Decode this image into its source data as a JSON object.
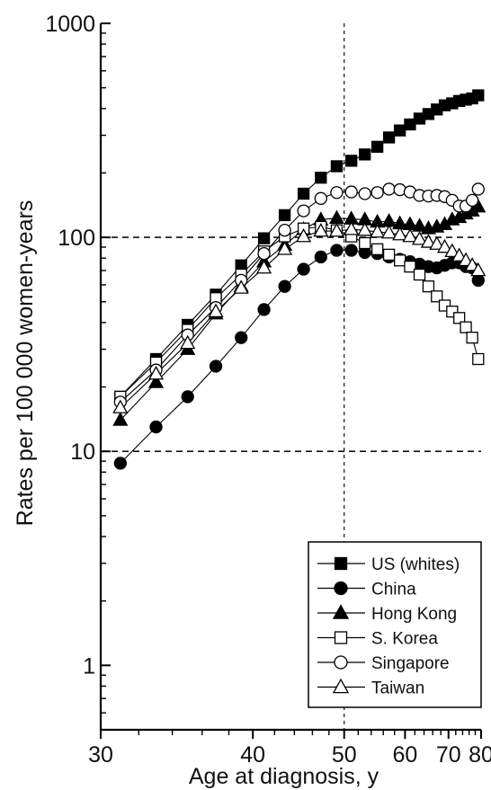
{
  "chart_data": {
    "type": "scatter",
    "title": "",
    "xlabel": "Age at diagnosis, y",
    "ylabel": "Rates per 100 000 women-years",
    "x_scale": "reciprocal",
    "y_scale": "log",
    "xlim": [
      30,
      80
    ],
    "ylim": [
      0.5,
      1000
    ],
    "x_ticks": [
      30,
      40,
      50,
      60,
      70,
      80
    ],
    "y_ticks": [
      1,
      10,
      100,
      1000
    ],
    "x_tick_labels": [
      "30",
      "40",
      "50",
      "60",
      "70",
      "80"
    ],
    "y_tick_labels": [
      "1",
      "10",
      "100",
      "1000"
    ],
    "reference_lines": {
      "horizontal": [
        10,
        100
      ],
      "vertical": [
        50
      ]
    },
    "legend": {
      "placement": "bottom-right"
    },
    "series": [
      {
        "name": "US (whites)",
        "marker": "filled-square",
        "x": [
          31,
          33,
          35,
          37,
          39,
          41,
          43,
          45,
          47,
          49,
          51,
          53,
          55,
          57,
          59,
          61,
          63,
          65,
          67,
          69,
          71,
          73,
          75,
          77,
          79
        ],
        "y": [
          18,
          27,
          39,
          54,
          74,
          99,
          127,
          160,
          190,
          215,
          228,
          244,
          265,
          293,
          316,
          337,
          359,
          377,
          396,
          414,
          423,
          434,
          440,
          446,
          461
        ]
      },
      {
        "name": "China",
        "marker": "filled-circle",
        "x": [
          31,
          33,
          35,
          37,
          39,
          41,
          43,
          45,
          47,
          49,
          51,
          53,
          55,
          57,
          59,
          61,
          63,
          65,
          67,
          69,
          71,
          73,
          75,
          77,
          79
        ],
        "y": [
          8.8,
          13,
          18,
          25,
          34,
          46,
          59,
          71,
          81,
          87,
          87,
          85,
          84,
          81,
          79,
          77,
          75,
          73,
          72,
          74,
          76,
          76,
          73,
          72,
          63
        ]
      },
      {
        "name": "Hong Kong",
        "marker": "filled-triangle",
        "x": [
          31,
          33,
          35,
          37,
          39,
          41,
          43,
          45,
          47,
          49,
          51,
          53,
          55,
          57,
          59,
          61,
          63,
          65,
          67,
          69,
          71,
          73,
          75,
          77,
          79
        ],
        "y": [
          14,
          21,
          30,
          44,
          59,
          77,
          92,
          109,
          121,
          123,
          122,
          121,
          118,
          119,
          116,
          115,
          113,
          110,
          112,
          115,
          121,
          124,
          129,
          133,
          139
        ]
      },
      {
        "name": "S. Korea",
        "marker": "open-square",
        "x": [
          31,
          33,
          35,
          37,
          39,
          41,
          43,
          45,
          47,
          49,
          51,
          53,
          55,
          57,
          59,
          61,
          63,
          65,
          67,
          69,
          71,
          73,
          75,
          77,
          79
        ],
        "y": [
          18,
          26,
          37,
          52,
          67,
          86,
          101,
          110,
          112,
          108,
          101,
          94,
          88,
          83,
          78,
          73,
          67,
          59,
          53,
          48,
          45,
          42,
          38,
          34,
          27
        ]
      },
      {
        "name": "Singapore",
        "marker": "open-circle",
        "x": [
          31,
          33,
          35,
          37,
          39,
          41,
          43,
          45,
          47,
          49,
          51,
          53,
          55,
          57,
          59,
          61,
          63,
          65,
          67,
          69,
          71,
          73,
          75,
          77,
          79
        ],
        "y": [
          17,
          24,
          35,
          47,
          63,
          84,
          108,
          133,
          152,
          162,
          163,
          160,
          162,
          168,
          167,
          163,
          157,
          156,
          157,
          155,
          149,
          140,
          140,
          149,
          168
        ]
      },
      {
        "name": "Taiwan",
        "marker": "open-triangle",
        "x": [
          31,
          33,
          35,
          37,
          39,
          41,
          43,
          45,
          47,
          49,
          51,
          53,
          55,
          57,
          59,
          61,
          63,
          65,
          67,
          69,
          71,
          73,
          75,
          77,
          79
        ],
        "y": [
          16,
          23,
          32,
          45,
          58,
          72,
          88,
          101,
          107,
          107,
          109,
          108,
          106,
          105,
          103,
          101,
          98,
          95,
          93,
          90,
          86,
          82,
          78,
          74,
          70
        ]
      }
    ]
  }
}
